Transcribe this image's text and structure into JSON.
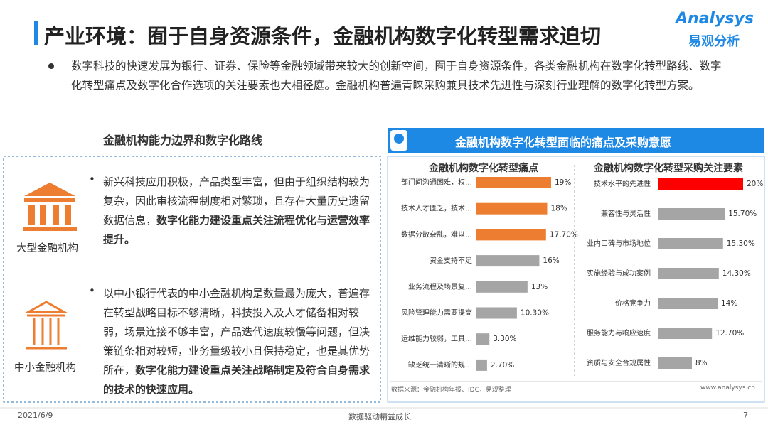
{
  "header": {
    "title": "产业环境：囿于自身资源条件，金融机构数字化转型需求迫切",
    "logo": "Analysys",
    "logo_cn": "易观分析"
  },
  "intro": "数字科技的快速发展为银行、证券、保险等金融领域带来较大的创新空间，囿于自身资源条件，各类金融机构在数字化转型路线、数字化转型痛点及数字化合作选项的关注要素也大相径庭。金融机构普遍青睐采购兼具技术先进性与深刻行业理解的数字化转型方案。",
  "left_panel": {
    "title": "金融机构能力边界和数字化路线",
    "items": [
      {
        "label": "大型金融机构",
        "text": "新兴科技应用积极，产品类型丰富，但由于组织结构较为复杂，因此审核流程制度相对繁琐，且存在大量历史遗留数据信息，",
        "emphasis": "数字化能力建设重点关注流程优化与运营效率提升。"
      },
      {
        "label": "中小金融机构",
        "text": "以中小银行代表的中小金融机构是数量最为庞大，普遍存在转型战略目标不够清晰，科技投入及人才储备相对较弱，场景连接不够丰富，产品迭代速度较慢等问题，但决策链条相对较短，业务量级较小且保持稳定，也是其优势所在，",
        "emphasis": "数字化能力建设重点关注战略制定及符合自身需求的技术的快速应用。"
      }
    ]
  },
  "right_panel": {
    "title": "金融机构数字化转型面临的痛点及采购意愿",
    "source": "数据来源：金融机构年报、IDC，易观整理",
    "website": "www.analysys.cn"
  },
  "chart_data": [
    {
      "type": "bar",
      "orientation": "horizontal",
      "title": "金融机构数字化转型痛点",
      "categories": [
        "部门间沟通困难，权…",
        "技术人才匮乏，技术…",
        "数据分散杂乱，难以…",
        "资金支持不足",
        "业务流程及场景复…",
        "风险管理能力需要提高",
        "运维能力较弱，工具…",
        "缺乏统一清晰的规…"
      ],
      "values": [
        19,
        18,
        17.7,
        16,
        13,
        10.3,
        3.3,
        2.7
      ],
      "value_labels": [
        "19%",
        "18%",
        "17.70%",
        "16%",
        "13%",
        "10.30%",
        "3.30%",
        "2.70%"
      ],
      "colors": [
        "#ed7d31",
        "#ed7d31",
        "#ed7d31",
        "#a5a5a5",
        "#a5a5a5",
        "#a5a5a5",
        "#a5a5a5",
        "#a5a5a5"
      ]
    },
    {
      "type": "bar",
      "orientation": "horizontal",
      "title": "金融机构数字化转型采购关注要素",
      "categories": [
        "技术水平的先进性",
        "兼容性与灵活性",
        "业内口碑与市场地位",
        "实施经验与成功案例",
        "价格竞争力",
        "服务能力与响应速度",
        "资质与安全合规属性"
      ],
      "values": [
        20,
        15.7,
        15.3,
        14.3,
        14,
        12.7,
        8
      ],
      "value_labels": [
        "20%",
        "15.70%",
        "15.30%",
        "14.30%",
        "14%",
        "12.70%",
        "8%"
      ],
      "colors": [
        "#ff0000",
        "#a5a5a5",
        "#a5a5a5",
        "#a5a5a5",
        "#a5a5a5",
        "#a5a5a5",
        "#a5a5a5"
      ]
    }
  ],
  "footer": {
    "date": "2021/6/9",
    "slogan": "数据驱动精益成长",
    "page": 7
  }
}
